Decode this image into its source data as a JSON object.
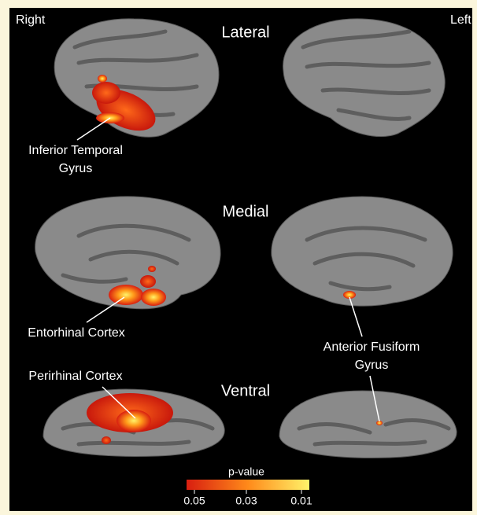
{
  "hemispheres": {
    "right": "Right",
    "left": "Left"
  },
  "views": {
    "lateral": "Lateral",
    "medial": "Medial",
    "ventral": "Ventral"
  },
  "annotations": {
    "inferior_temporal": [
      "Inferior Temporal",
      "Gyrus"
    ],
    "entorhinal": [
      "Entorhinal Cortex"
    ],
    "anterior_fusiform": [
      "Anterior Fusiform",
      "Gyrus"
    ],
    "perirhinal": [
      "Perirhinal Cortex"
    ]
  },
  "colorbar": {
    "title": "p-value",
    "ticks": [
      "0.05",
      "0.03",
      "0.01"
    ]
  }
}
